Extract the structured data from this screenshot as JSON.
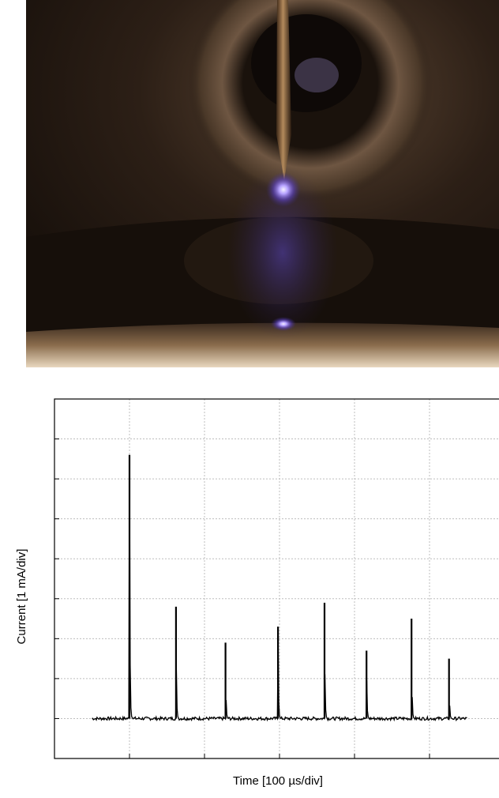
{
  "photo": {
    "subject": "plasma discharge between electrode needle and liquid surface",
    "colors": {
      "background": "#2a1d14",
      "glow": "#8a6cff",
      "needle": "#6b4a2a"
    }
  },
  "chart_data": {
    "type": "line",
    "title": "",
    "xlabel": "Time [100 µs/div]",
    "ylabel": "Current [1 mA/div]",
    "xlim": [
      0,
      6
    ],
    "ylim": [
      -1,
      8
    ],
    "x_divisions": 6,
    "y_divisions": 9,
    "baseline": 0,
    "grid": true,
    "pulses": [
      {
        "x": 1.0,
        "peak": 6.6
      },
      {
        "x": 1.62,
        "peak": 2.8
      },
      {
        "x": 2.28,
        "peak": 1.9
      },
      {
        "x": 2.98,
        "peak": 2.3
      },
      {
        "x": 3.6,
        "peak": 2.9
      },
      {
        "x": 4.16,
        "peak": 1.7
      },
      {
        "x": 4.76,
        "peak": 2.5
      },
      {
        "x": 5.26,
        "peak": 1.5
      }
    ],
    "trace_range": [
      0.5,
      5.5
    ],
    "colors": {
      "trace": "#000000",
      "grid": "#bdbdbd",
      "frame": "#000000"
    }
  }
}
